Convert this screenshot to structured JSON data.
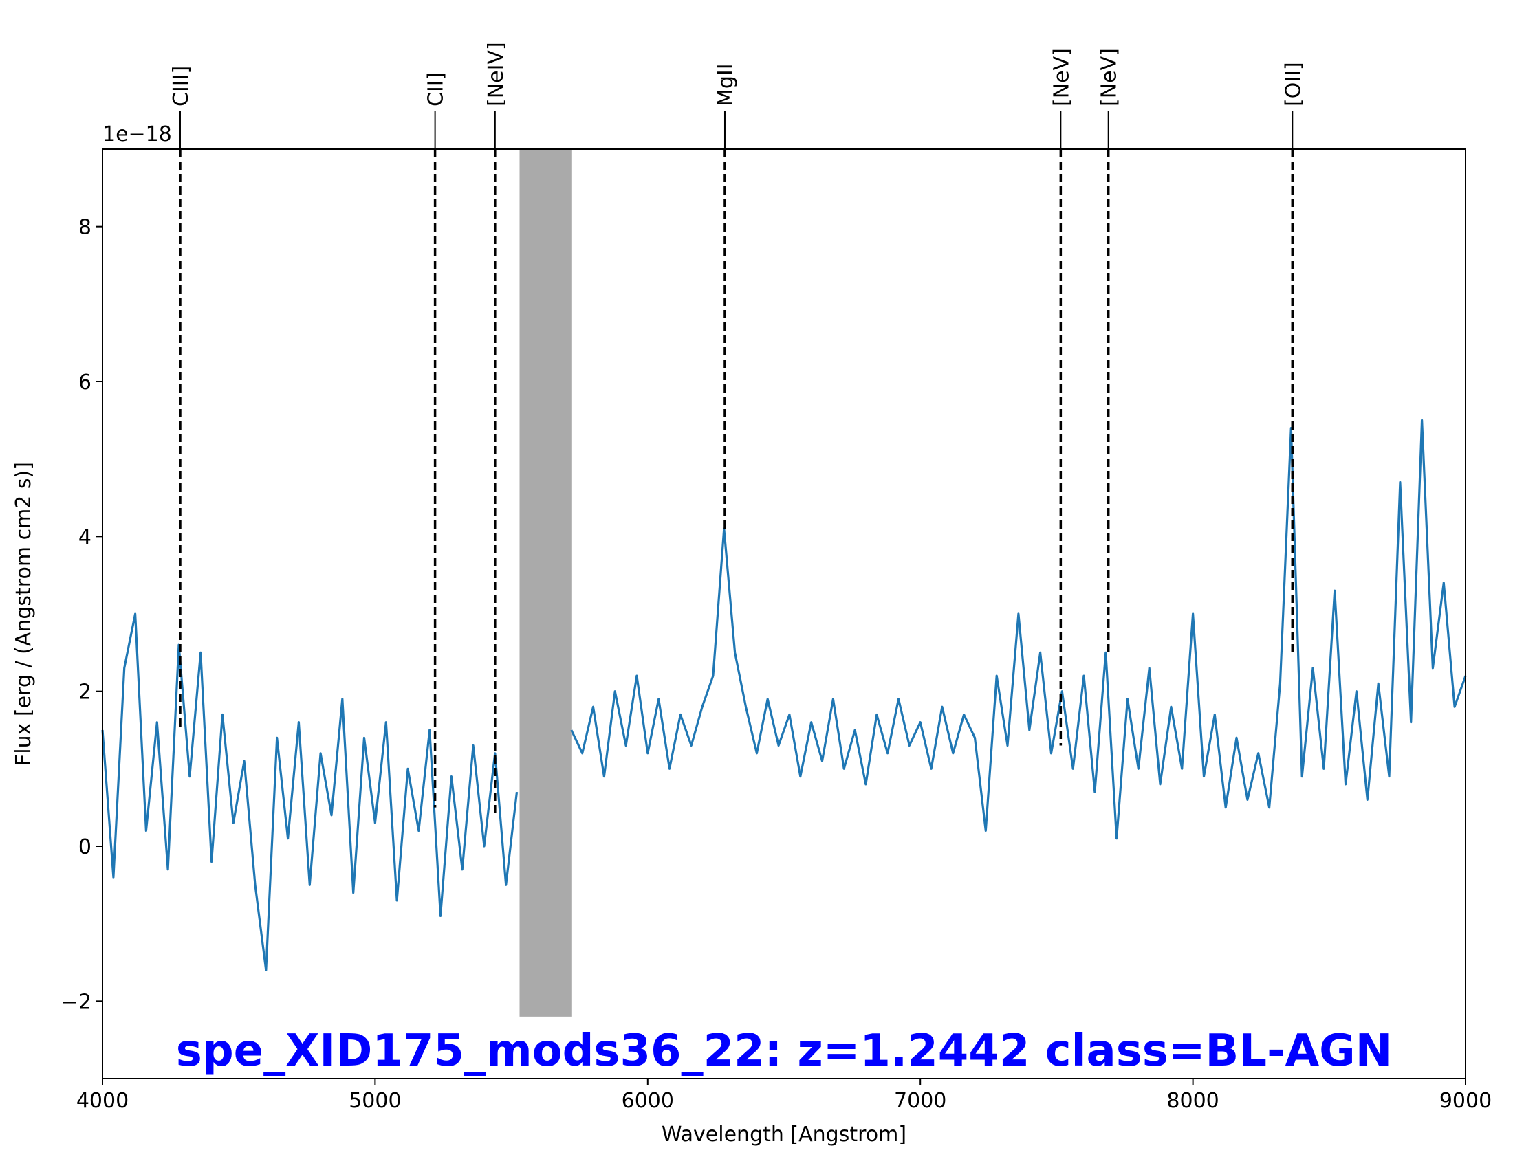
{
  "chart_data": {
    "type": "line",
    "title": "spe_XID175_mods36_22: z=1.2442 class=BL-AGN",
    "title_color": "#0000ff",
    "xlabel": "Wavelength [Angstrom]",
    "ylabel": "Flux [erg / (Angstrom cm2 s)]",
    "y_offset_label": "1e−18",
    "xlim": [
      4000,
      9000
    ],
    "xticks": [
      4000,
      5000,
      6000,
      7000,
      8000,
      9000
    ],
    "ylim": [
      -3,
      9
    ],
    "yticks": [
      {
        "value": -2,
        "label": "−2"
      },
      0,
      2,
      4,
      6,
      8
    ],
    "x": [
      4000,
      4040,
      4080,
      4120,
      4160,
      4200,
      4240,
      4280,
      4320,
      4360,
      4400,
      4440,
      4480,
      4520,
      4560,
      4600,
      4640,
      4680,
      4720,
      4760,
      4800,
      4840,
      4880,
      4920,
      4960,
      5000,
      5040,
      5080,
      5120,
      5160,
      5200,
      5240,
      5280,
      5320,
      5360,
      5400,
      5440,
      5480,
      5520,
      5560,
      5600,
      5640,
      5680,
      5720,
      5760,
      5800,
      5840,
      5880,
      5920,
      5960,
      6000,
      6040,
      6080,
      6120,
      6160,
      6200,
      6240,
      6280,
      6320,
      6360,
      6400,
      6440,
      6480,
      6520,
      6560,
      6600,
      6640,
      6680,
      6720,
      6760,
      6800,
      6840,
      6880,
      6920,
      6960,
      7000,
      7040,
      7080,
      7120,
      7160,
      7200,
      7240,
      7280,
      7320,
      7360,
      7400,
      7440,
      7480,
      7520,
      7560,
      7600,
      7640,
      7680,
      7720,
      7760,
      7800,
      7840,
      7880,
      7920,
      7960,
      8000,
      8040,
      8080,
      8120,
      8160,
      8200,
      8240,
      8280,
      8320,
      8360,
      8400,
      8440,
      8480,
      8520,
      8560,
      8600,
      8640,
      8680,
      8720,
      8760,
      8800,
      8840,
      8880,
      8920,
      8960,
      9000
    ],
    "series": [
      {
        "color": "#1f77b4",
        "values": [
          1.5,
          -0.4,
          2.3,
          3.0,
          0.2,
          1.6,
          -0.3,
          2.6,
          0.9,
          2.5,
          -0.2,
          1.7,
          0.3,
          1.1,
          -0.5,
          -1.6,
          1.4,
          0.1,
          1.6,
          -0.5,
          1.2,
          0.4,
          1.9,
          -0.6,
          1.4,
          0.3,
          1.6,
          -0.7,
          1.0,
          0.2,
          1.5,
          -0.9,
          0.9,
          -0.3,
          1.3,
          0.0,
          1.2,
          -0.5,
          0.7,
          null,
          null,
          null,
          null,
          1.5,
          1.2,
          1.8,
          0.9,
          2.0,
          1.3,
          2.2,
          1.2,
          1.9,
          1.0,
          1.7,
          1.3,
          1.8,
          2.2,
          4.1,
          2.5,
          1.8,
          1.2,
          1.9,
          1.3,
          1.7,
          0.9,
          1.6,
          1.1,
          1.9,
          1.0,
          1.5,
          0.8,
          1.7,
          1.2,
          1.9,
          1.3,
          1.6,
          1.0,
          1.8,
          1.2,
          1.7,
          1.4,
          0.2,
          2.2,
          1.3,
          3.0,
          1.5,
          2.5,
          1.2,
          2.0,
          1.0,
          2.2,
          0.7,
          2.5,
          0.1,
          1.9,
          1.0,
          2.3,
          0.8,
          1.8,
          1.0,
          3.0,
          0.9,
          1.7,
          0.5,
          1.4,
          0.6,
          1.2,
          0.5,
          2.1,
          5.4,
          0.9,
          2.3,
          1.0,
          3.3,
          0.8,
          2.0,
          0.6,
          2.1,
          0.9,
          4.7,
          1.6,
          5.5,
          2.3,
          3.4,
          1.8,
          2.2
        ]
      }
    ],
    "shade": {
      "x": [
        5530,
        5720
      ],
      "y": [
        -2.2,
        9
      ],
      "color": "#aaaaaa"
    },
    "lines": [
      {
        "label": "CIII]",
        "x": 4285,
        "y": 1.5
      },
      {
        "label": "CII]",
        "x": 5220,
        "y": 0.5
      },
      {
        "label": "[NeIV]",
        "x": 5440,
        "y": 0.4
      },
      {
        "label": "MgII",
        "x": 6283,
        "y": 4.1
      },
      {
        "label": "[NeV]",
        "x": 7515,
        "y": 1.3
      },
      {
        "label": "[NeV]",
        "x": 7690,
        "y": 2.5
      },
      {
        "label": "[OII]",
        "x": 8365,
        "y": 2.5
      }
    ]
  }
}
